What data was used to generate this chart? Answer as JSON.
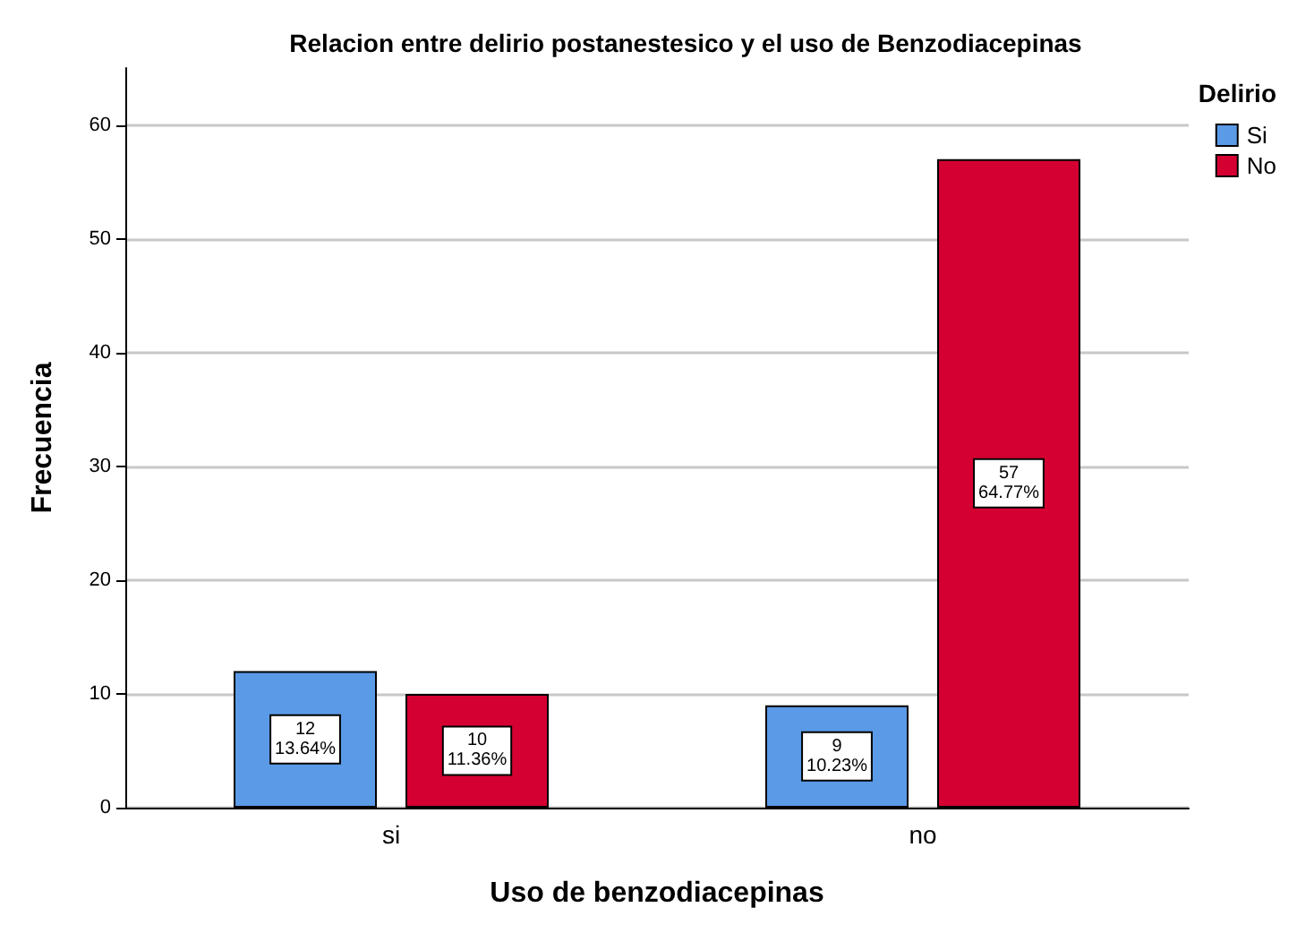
{
  "chart_data": {
    "type": "bar",
    "title": "Relacion entre delirio postanestesico y el uso de Benzodiacepinas",
    "xlabel": "Uso de benzodiacepinas",
    "ylabel": "Frecuencia",
    "legend_title": "Delirio",
    "categories": [
      "si",
      "no"
    ],
    "series": [
      {
        "name": "Si",
        "color": "#5a9ae6",
        "values": [
          12,
          9
        ],
        "value_labels": [
          "12\n13.64%",
          "9\n10.23%"
        ]
      },
      {
        "name": "No",
        "color": "#d50032",
        "values": [
          10,
          57
        ],
        "value_labels": [
          "10\n11.36%",
          "57\n64.77%"
        ]
      }
    ],
    "ylim": [
      0,
      65
    ],
    "yticks": [
      0,
      10,
      20,
      30,
      40,
      50,
      60
    ],
    "grid": "y",
    "legend": "top right"
  }
}
